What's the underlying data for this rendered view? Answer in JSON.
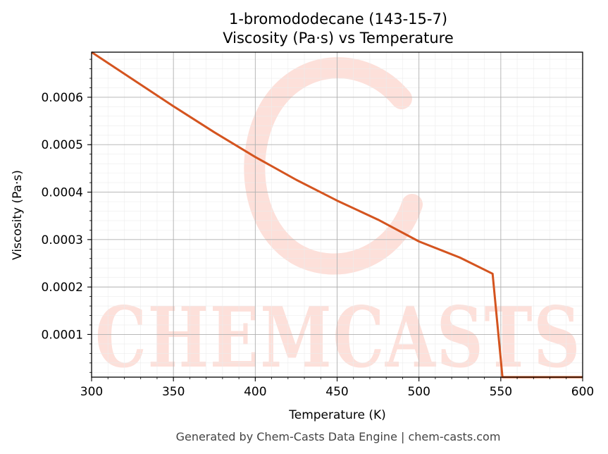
{
  "chart_data": {
    "type": "line",
    "title": "1-bromododecane (143-15-7)",
    "subtitle": "Viscosity (Pa·s) vs Temperature",
    "xlabel": "Temperature (K)",
    "ylabel": "Viscosity (Pa·s)",
    "xlim": [
      300,
      600
    ],
    "ylim": [
      1e-05,
      0.000695
    ],
    "x_ticks": [
      "300",
      "350",
      "400",
      "450",
      "500",
      "550",
      "600"
    ],
    "y_ticks": [
      "0.0001",
      "0.0002",
      "0.0003",
      "0.0004",
      "0.0005",
      "0.0006"
    ],
    "grid": true,
    "series": [
      {
        "color": "#d4541f",
        "x": [
          300,
          325,
          350,
          375,
          400,
          425,
          450,
          475,
          500,
          525,
          545,
          551,
          560,
          580,
          600
        ],
        "y": [
          0.000695,
          0.000638,
          0.000581,
          0.000526,
          0.000474,
          0.000426,
          0.000382,
          0.000342,
          0.000296,
          0.000262,
          0.000228,
          1e-05,
          1e-05,
          1e-05,
          1e-05
        ]
      }
    ]
  },
  "watermark": {
    "text": "CHEMCASTS",
    "color": "#fde0da"
  },
  "footer": "Generated by Chem-Casts Data Engine | chem-casts.com"
}
